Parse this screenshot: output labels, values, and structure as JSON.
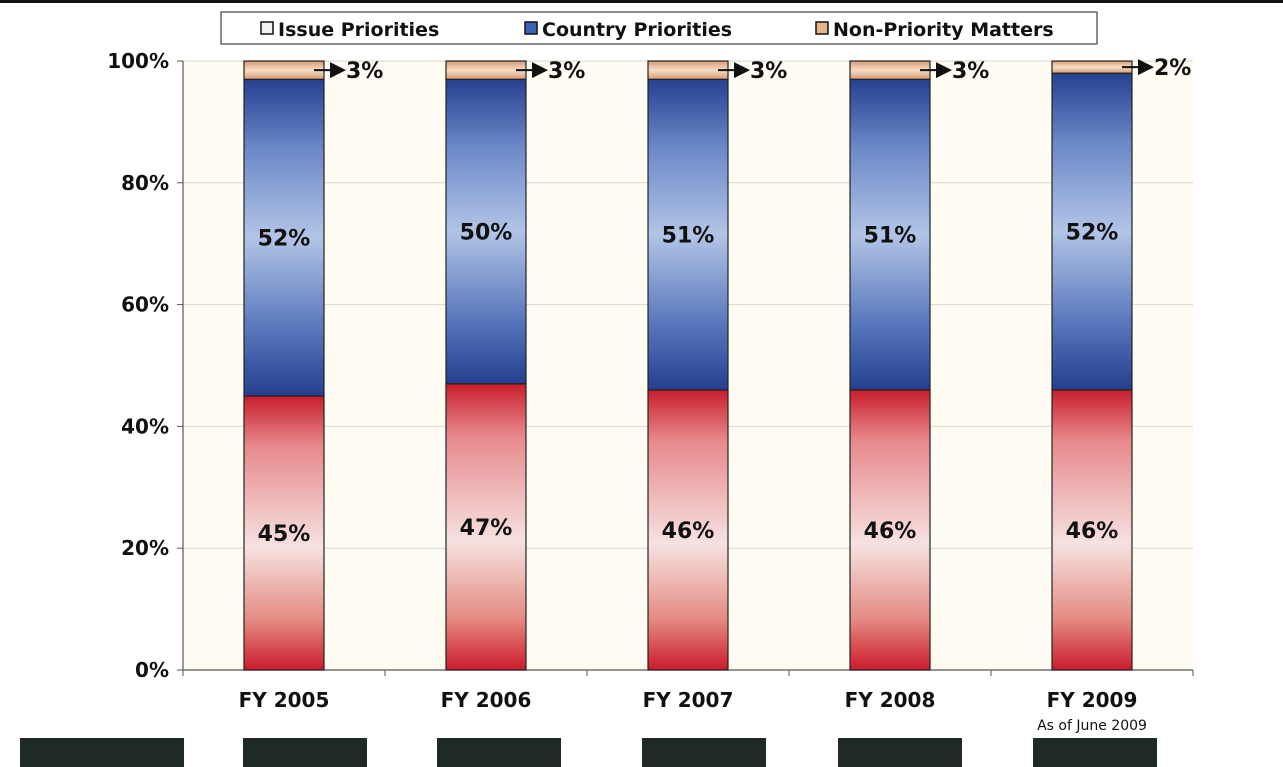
{
  "chart_data": {
    "type": "bar",
    "stacked": true,
    "categories": [
      "FY 2005",
      "FY 2006",
      "FY 2007",
      "FY 2008",
      "FY 2009"
    ],
    "category_sublabels": [
      "",
      "",
      "",
      "",
      "As of June 2009"
    ],
    "series": [
      {
        "name": "Issue Priorities",
        "values": [
          45,
          47,
          46,
          46,
          46
        ],
        "labels": [
          "45%",
          "47%",
          "46%",
          "46%",
          "46%"
        ],
        "color": "#cc2030"
      },
      {
        "name": "Country Priorities",
        "values": [
          52,
          50,
          51,
          51,
          52
        ],
        "labels": [
          "52%",
          "50%",
          "51%",
          "51%",
          "52%"
        ],
        "color": "#2a4fa0"
      },
      {
        "name": "Non-Priority Matters",
        "values": [
          3,
          3,
          3,
          3,
          2
        ],
        "labels": [
          "3%",
          "3%",
          "3%",
          "3%",
          "2%"
        ],
        "color": "#e8b48a"
      }
    ],
    "yticks": [
      "0%",
      "20%",
      "40%",
      "60%",
      "80%",
      "100%"
    ],
    "ylim": [
      0,
      100
    ],
    "legend": "top",
    "grid": true
  }
}
